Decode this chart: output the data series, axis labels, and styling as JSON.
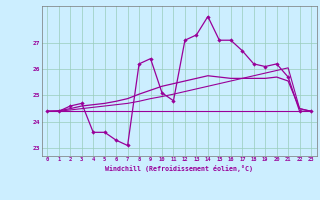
{
  "xlabel": "Windchill (Refroidissement éolien,°C)",
  "background_color": "#cceeff",
  "grid_color": "#99ccbb",
  "line_color": "#990099",
  "hours": [
    0,
    1,
    2,
    3,
    4,
    5,
    6,
    7,
    8,
    9,
    10,
    11,
    12,
    13,
    14,
    15,
    16,
    17,
    18,
    19,
    20,
    21,
    22,
    23
  ],
  "main_line": [
    24.4,
    24.4,
    24.6,
    24.7,
    23.6,
    23.6,
    23.3,
    23.1,
    26.2,
    26.4,
    25.1,
    24.8,
    27.1,
    27.3,
    28.0,
    27.1,
    27.1,
    26.7,
    26.2,
    26.1,
    26.2,
    25.7,
    24.4,
    24.4
  ],
  "smooth_line": [
    24.4,
    24.42,
    24.5,
    24.6,
    24.65,
    24.7,
    24.78,
    24.88,
    25.05,
    25.2,
    25.35,
    25.45,
    25.55,
    25.65,
    25.75,
    25.7,
    25.65,
    25.65,
    25.65,
    25.65,
    25.7,
    25.55,
    24.5,
    24.4
  ],
  "flat_line": [
    24.4,
    24.4,
    24.4,
    24.4,
    24.4,
    24.4,
    24.4,
    24.4,
    24.4,
    24.4,
    24.4,
    24.4,
    24.4,
    24.4,
    24.4,
    24.4,
    24.4,
    24.4,
    24.4,
    24.4,
    24.4,
    24.4,
    24.4,
    24.4
  ],
  "trend_line": [
    24.4,
    24.4,
    24.45,
    24.5,
    24.55,
    24.6,
    24.65,
    24.7,
    24.78,
    24.88,
    24.96,
    25.05,
    25.15,
    25.25,
    25.35,
    25.45,
    25.55,
    25.65,
    25.75,
    25.85,
    25.95,
    26.05,
    24.5,
    24.4
  ],
  "ylim": [
    22.7,
    28.4
  ],
  "yticks": [
    23,
    24,
    25,
    26,
    27
  ],
  "xticks": [
    0,
    1,
    2,
    3,
    4,
    5,
    6,
    7,
    8,
    9,
    10,
    11,
    12,
    13,
    14,
    15,
    16,
    17,
    18,
    19,
    20,
    21,
    22,
    23
  ]
}
